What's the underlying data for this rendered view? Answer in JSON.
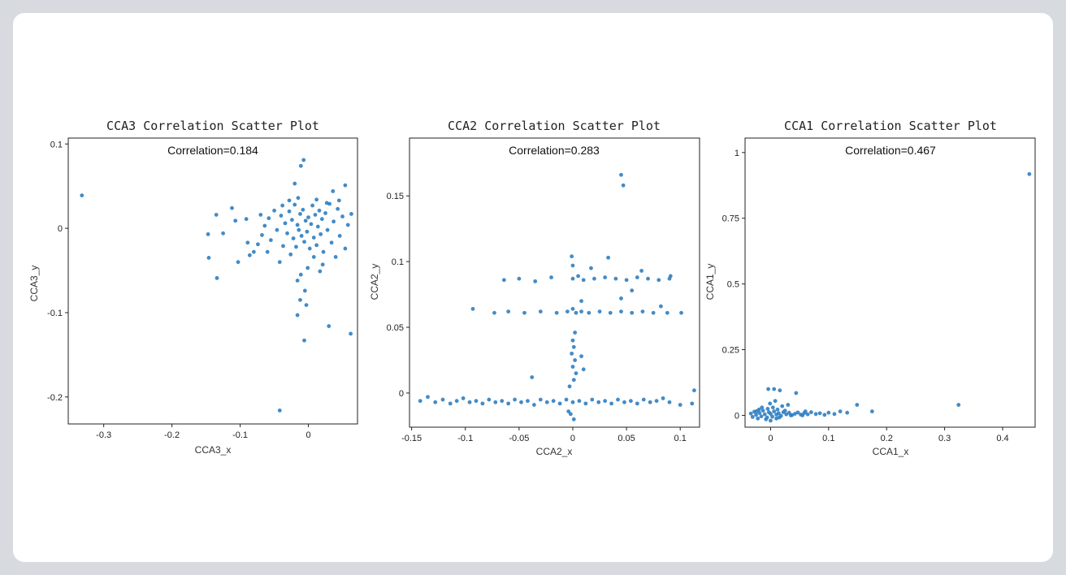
{
  "colors": {
    "point": "#2f7ec1",
    "frame": "#222222",
    "background": "#d7dadf"
  },
  "chart_data": [
    {
      "type": "scatter",
      "title": "CCA3 Correlation Scatter Plot",
      "annotation": "Correlation=0.184",
      "xlabel": "CCA3_x",
      "ylabel": "CCA3_y",
      "xlim": [
        -0.352,
        0.072
      ],
      "ylim": [
        -0.232,
        0.107
      ],
      "xticks": [
        -0.3,
        -0.2,
        -0.1,
        0
      ],
      "xtick_labels": [
        "-0.3",
        "-0.2",
        "-0.1",
        "0"
      ],
      "yticks": [
        0.1,
        0,
        -0.1,
        -0.2
      ],
      "ytick_labels": [
        "0.1",
        "0",
        "-0.1",
        "-0.2"
      ],
      "grid": false,
      "points": [
        [
          -0.332,
          0.039
        ],
        [
          -0.147,
          -0.007
        ],
        [
          -0.146,
          -0.035
        ],
        [
          -0.135,
          0.016
        ],
        [
          -0.134,
          -0.059
        ],
        [
          -0.125,
          -0.006
        ],
        [
          -0.112,
          0.024
        ],
        [
          -0.107,
          0.009
        ],
        [
          -0.103,
          -0.04
        ],
        [
          -0.091,
          0.011
        ],
        [
          -0.089,
          -0.017
        ],
        [
          -0.086,
          -0.032
        ],
        [
          -0.08,
          -0.028
        ],
        [
          -0.074,
          -0.019
        ],
        [
          -0.07,
          0.016
        ],
        [
          -0.068,
          -0.008
        ],
        [
          -0.064,
          0.003
        ],
        [
          -0.06,
          -0.028
        ],
        [
          -0.058,
          0.012
        ],
        [
          -0.055,
          -0.014
        ],
        [
          -0.05,
          0.021
        ],
        [
          -0.046,
          -0.002
        ],
        [
          -0.042,
          -0.04
        ],
        [
          -0.04,
          0.015
        ],
        [
          -0.037,
          -0.021
        ],
        [
          -0.034,
          0.006
        ],
        [
          -0.031,
          -0.006
        ],
        [
          -0.028,
          0.02
        ],
        [
          -0.026,
          -0.031
        ],
        [
          -0.024,
          0.01
        ],
        [
          -0.022,
          -0.012
        ],
        [
          -0.02,
          0.028
        ],
        [
          -0.018,
          -0.022
        ],
        [
          -0.016,
          0.004
        ],
        [
          -0.014,
          -0.002
        ],
        [
          -0.012,
          0.017
        ],
        [
          -0.01,
          -0.009
        ],
        [
          -0.008,
          0.022
        ],
        [
          -0.006,
          -0.016
        ],
        [
          -0.004,
          0.009
        ],
        [
          -0.002,
          -0.004
        ],
        [
          0.0,
          0.013
        ],
        [
          0.002,
          -0.024
        ],
        [
          0.004,
          0.005
        ],
        [
          0.006,
          0.027
        ],
        [
          0.008,
          -0.011
        ],
        [
          0.01,
          0.016
        ],
        [
          0.012,
          -0.02
        ],
        [
          0.014,
          0.002
        ],
        [
          0.016,
          0.021
        ],
        [
          0.018,
          -0.007
        ],
        [
          0.02,
          0.011
        ],
        [
          0.022,
          -0.028
        ],
        [
          0.025,
          0.018
        ],
        [
          0.028,
          -0.002
        ],
        [
          0.031,
          0.029
        ],
        [
          0.034,
          -0.017
        ],
        [
          0.037,
          0.008
        ],
        [
          0.04,
          -0.034
        ],
        [
          0.043,
          0.023
        ],
        [
          0.046,
          -0.009
        ],
        [
          0.05,
          0.014
        ],
        [
          0.054,
          -0.024
        ],
        [
          0.058,
          0.004
        ],
        [
          0.063,
          0.017
        ],
        [
          -0.011,
          0.074
        ],
        [
          -0.007,
          0.081
        ],
        [
          -0.02,
          0.053
        ],
        [
          0.036,
          0.044
        ],
        [
          0.054,
          0.051
        ],
        [
          -0.016,
          -0.062
        ],
        [
          -0.012,
          -0.085
        ],
        [
          -0.016,
          -0.103
        ],
        [
          -0.006,
          -0.133
        ],
        [
          0.03,
          -0.116
        ],
        [
          0.062,
          -0.125
        ],
        [
          -0.042,
          -0.216
        ],
        [
          -0.003,
          -0.091
        ],
        [
          -0.005,
          -0.074
        ],
        [
          0.017,
          -0.051
        ],
        [
          -0.001,
          -0.047
        ],
        [
          -0.011,
          -0.055
        ],
        [
          0.008,
          -0.034
        ],
        [
          0.021,
          -0.043
        ],
        [
          -0.015,
          0.036
        ],
        [
          0.012,
          0.034
        ],
        [
          -0.028,
          0.033
        ],
        [
          0.027,
          0.03
        ],
        [
          -0.038,
          0.027
        ],
        [
          0.045,
          0.033
        ]
      ]
    },
    {
      "type": "scatter",
      "title": "CCA2 Correlation Scatter Plot",
      "annotation": "Correlation=0.283",
      "xlabel": "CCA2_x",
      "ylabel": "CCA2_y",
      "xlim": [
        -0.152,
        0.118
      ],
      "ylim": [
        -0.026,
        0.194
      ],
      "xticks": [
        -0.15,
        -0.1,
        -0.05,
        0,
        0.05,
        0.1
      ],
      "xtick_labels": [
        "-0.15",
        "-0.1",
        "-0.05",
        "0",
        "0.05",
        "0.1"
      ],
      "yticks": [
        0.15,
        0.1,
        0.05,
        0
      ],
      "ytick_labels": [
        "0.15",
        "0.1",
        "0.05",
        "0"
      ],
      "grid": false,
      "points": [
        [
          0.045,
          0.166
        ],
        [
          0.047,
          0.158
        ],
        [
          -0.142,
          -0.006
        ],
        [
          -0.135,
          -0.003
        ],
        [
          -0.128,
          -0.007
        ],
        [
          -0.121,
          -0.005
        ],
        [
          -0.114,
          -0.008
        ],
        [
          -0.108,
          -0.006
        ],
        [
          -0.102,
          -0.004
        ],
        [
          -0.096,
          -0.007
        ],
        [
          -0.09,
          -0.006
        ],
        [
          -0.084,
          -0.008
        ],
        [
          -0.078,
          -0.005
        ],
        [
          -0.072,
          -0.007
        ],
        [
          -0.066,
          -0.006
        ],
        [
          -0.06,
          -0.008
        ],
        [
          -0.054,
          -0.005
        ],
        [
          -0.048,
          -0.007
        ],
        [
          -0.042,
          -0.006
        ],
        [
          -0.036,
          -0.009
        ],
        [
          -0.03,
          -0.005
        ],
        [
          -0.024,
          -0.007
        ],
        [
          -0.018,
          -0.006
        ],
        [
          -0.012,
          -0.008
        ],
        [
          -0.006,
          -0.005
        ],
        [
          0.0,
          -0.007
        ],
        [
          0.006,
          -0.006
        ],
        [
          0.012,
          -0.008
        ],
        [
          0.018,
          -0.005
        ],
        [
          0.024,
          -0.007
        ],
        [
          0.03,
          -0.006
        ],
        [
          0.036,
          -0.008
        ],
        [
          0.042,
          -0.005
        ],
        [
          0.048,
          -0.007
        ],
        [
          0.054,
          -0.006
        ],
        [
          0.06,
          -0.008
        ],
        [
          0.066,
          -0.005
        ],
        [
          0.072,
          -0.007
        ],
        [
          0.078,
          -0.006
        ],
        [
          0.084,
          -0.004
        ],
        [
          0.09,
          -0.007
        ],
        [
          0.1,
          -0.009
        ],
        [
          0.113,
          0.002
        ],
        [
          0.111,
          -0.008
        ],
        [
          -0.038,
          0.012
        ],
        [
          -0.003,
          0.005
        ],
        [
          0.001,
          0.01
        ],
        [
          0.003,
          0.015
        ],
        [
          0.0,
          0.02
        ],
        [
          0.002,
          0.025
        ],
        [
          -0.001,
          0.03
        ],
        [
          0.001,
          0.035
        ],
        [
          0.0,
          0.04
        ],
        [
          0.002,
          0.046
        ],
        [
          0.008,
          0.028
        ],
        [
          0.01,
          0.018
        ],
        [
          -0.004,
          -0.014
        ],
        [
          0.001,
          -0.02
        ],
        [
          -0.002,
          -0.016
        ],
        [
          -0.093,
          0.064
        ],
        [
          -0.073,
          0.061
        ],
        [
          -0.06,
          0.062
        ],
        [
          -0.045,
          0.061
        ],
        [
          -0.03,
          0.062
        ],
        [
          -0.015,
          0.061
        ],
        [
          -0.005,
          0.062
        ],
        [
          0.0,
          0.064
        ],
        [
          0.003,
          0.061
        ],
        [
          0.008,
          0.062
        ],
        [
          0.015,
          0.061
        ],
        [
          0.025,
          0.062
        ],
        [
          0.035,
          0.061
        ],
        [
          0.045,
          0.062
        ],
        [
          0.055,
          0.061
        ],
        [
          0.065,
          0.062
        ],
        [
          0.075,
          0.061
        ],
        [
          0.088,
          0.061
        ],
        [
          0.101,
          0.061
        ],
        [
          -0.064,
          0.086
        ],
        [
          -0.05,
          0.087
        ],
        [
          -0.035,
          0.085
        ],
        [
          -0.02,
          0.088
        ],
        [
          0.0,
          0.087
        ],
        [
          0.005,
          0.089
        ],
        [
          0.01,
          0.086
        ],
        [
          0.02,
          0.087
        ],
        [
          0.03,
          0.088
        ],
        [
          0.04,
          0.087
        ],
        [
          0.05,
          0.086
        ],
        [
          0.06,
          0.088
        ],
        [
          0.07,
          0.087
        ],
        [
          0.08,
          0.086
        ],
        [
          0.09,
          0.087
        ],
        [
          -0.001,
          0.104
        ],
        [
          0.033,
          0.103
        ],
        [
          0.017,
          0.095
        ],
        [
          0.064,
          0.093
        ],
        [
          0.055,
          0.078
        ],
        [
          0.045,
          0.072
        ],
        [
          0.008,
          0.07
        ],
        [
          0.0,
          0.097
        ],
        [
          0.082,
          0.066
        ],
        [
          0.091,
          0.089
        ]
      ]
    },
    {
      "type": "scatter",
      "title": "CCA1 Correlation Scatter Plot",
      "annotation": "Correlation=0.467",
      "xlabel": "CCA1_x",
      "ylabel": "CCA1_y",
      "xlim": [
        -0.044,
        0.456
      ],
      "ylim": [
        -0.045,
        1.055
      ],
      "xticks": [
        0,
        0.1,
        0.2,
        0.3,
        0.4
      ],
      "xtick_labels": [
        "0",
        "0.1",
        "0.2",
        "0.3",
        "0.4"
      ],
      "yticks": [
        1,
        0.75,
        0.5,
        0.25,
        0
      ],
      "ytick_labels": [
        "1",
        "0.75",
        "0.5",
        "0.25",
        "0"
      ],
      "grid": false,
      "points": [
        [
          0.446,
          0.918
        ],
        [
          0.324,
          0.04
        ],
        [
          0.175,
          0.015
        ],
        [
          0.149,
          0.04
        ],
        [
          0.132,
          0.01
        ],
        [
          0.12,
          0.015
        ],
        [
          0.11,
          0.005
        ],
        [
          0.1,
          0.01
        ],
        [
          0.093,
          0.002
        ],
        [
          0.085,
          0.008
        ],
        [
          0.078,
          0.005
        ],
        [
          0.07,
          0.012
        ],
        [
          0.064,
          0.004
        ],
        [
          0.058,
          0.009
        ],
        [
          0.052,
          0.003
        ],
        [
          0.047,
          0.011
        ],
        [
          0.042,
          0.006
        ],
        [
          0.037,
          0.001
        ],
        [
          0.032,
          0.01
        ],
        [
          0.027,
          0.004
        ],
        [
          0.022,
          0.012
        ],
        [
          0.018,
          -0.002
        ],
        [
          0.014,
          0.008
        ],
        [
          0.01,
          0.003
        ],
        [
          0.006,
          0.015
        ],
        [
          0.003,
          -0.005
        ],
        [
          0.0,
          0.006
        ],
        [
          -0.003,
          0.012
        ],
        [
          -0.006,
          -0.008
        ],
        [
          -0.01,
          0.004
        ],
        [
          -0.013,
          0.018
        ],
        [
          -0.016,
          -0.004
        ],
        [
          -0.019,
          0.009
        ],
        [
          -0.022,
          -0.012
        ],
        [
          -0.025,
          0.002
        ],
        [
          -0.028,
          0.014
        ],
        [
          -0.031,
          -0.006
        ],
        [
          -0.034,
          0.007
        ],
        [
          -0.005,
          0.025
        ],
        [
          0.004,
          0.03
        ],
        [
          0.012,
          0.022
        ],
        [
          -0.001,
          0.045
        ],
        [
          0.008,
          0.055
        ],
        [
          -0.004,
          0.1
        ],
        [
          0.006,
          0.1
        ],
        [
          0.016,
          0.095
        ],
        [
          0.044,
          0.085
        ],
        [
          0.03,
          0.04
        ],
        [
          0.02,
          0.035
        ],
        [
          -0.015,
          0.03
        ],
        [
          -0.02,
          0.022
        ],
        [
          0.0,
          -0.02
        ],
        [
          -0.008,
          -0.015
        ],
        [
          0.01,
          -0.012
        ],
        [
          0.035,
          0.0
        ],
        [
          0.055,
          0.0
        ],
        [
          0.06,
          0.015
        ],
        [
          0.025,
          0.018
        ],
        [
          0.015,
          -0.008
        ],
        [
          -0.024,
          0.016
        ]
      ]
    }
  ]
}
